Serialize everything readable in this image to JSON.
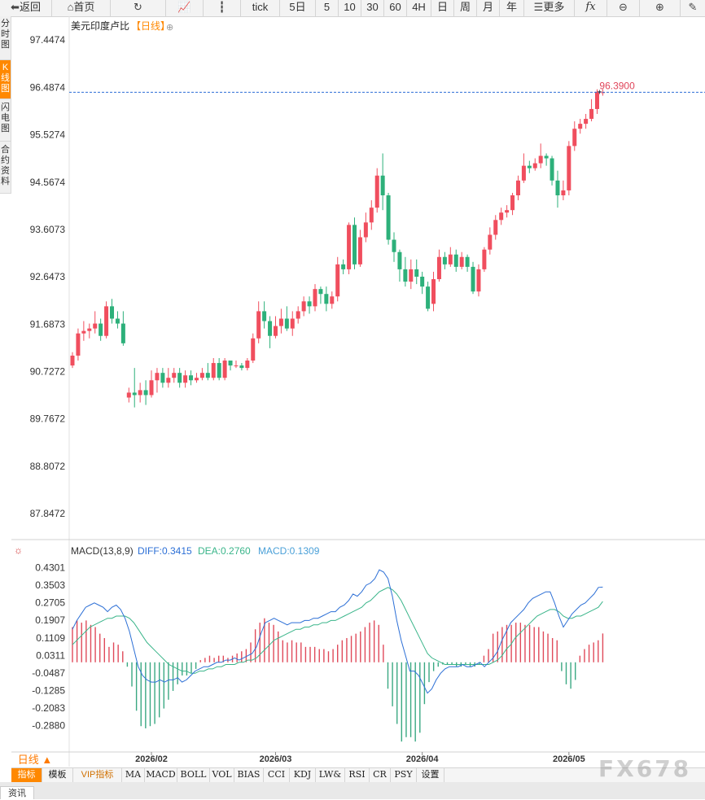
{
  "toolbar": {
    "back": "返回",
    "home": "首页",
    "tick": "tick",
    "d5": "5日",
    "m5": "5",
    "m10": "10",
    "m30": "30",
    "m60": "60",
    "h4": "4H",
    "day": "日",
    "week": "周",
    "month": "月",
    "year": "年",
    "more": "更多",
    "fx": "fx"
  },
  "sidebar": {
    "items": [
      "分时图",
      "K线图",
      "闪电图",
      "合约资料"
    ],
    "active_index": 1
  },
  "main": {
    "title": "美元印度卢比",
    "period_tag": "【日线】",
    "price_label": "96.3900",
    "price_axis": [
      "97.4474",
      "96.4874",
      "95.5274",
      "94.5674",
      "93.6073",
      "92.6473",
      "91.6873",
      "90.7272",
      "89.7672",
      "88.8072",
      "87.8472"
    ],
    "colors": {
      "up": "#f04e5e",
      "down": "#2db07a",
      "price_line": "#2c6fd6",
      "diff": "#2c6fd6",
      "dea": "#3ab58a",
      "macd_pos": "#e04a5a",
      "macd_neg": "#3aa882"
    }
  },
  "macd": {
    "name": "MACD(13,8,9)",
    "diff_label": "DIFF:0.3415",
    "dea_label": "DEA:0.2760",
    "macd_label": "MACD:0.1309",
    "axis": [
      "0.4301",
      "0.3503",
      "0.2705",
      "0.1907",
      "0.1109",
      "0.0311",
      "-0.0487",
      "-0.1285",
      "-0.2083",
      "-0.2880"
    ]
  },
  "dates": [
    "2026/02",
    "2026/03",
    "2026/04",
    "2026/05"
  ],
  "period_box": "日线 ▲",
  "bottom_tabs": [
    "指标",
    "模板",
    "VIP指标",
    "MA",
    "MACD",
    "BOLL",
    "VOL",
    "BIAS",
    "CCI",
    "KDJ",
    "LW&",
    "RSI",
    "CR",
    "PSY",
    "设置"
  ],
  "news_tab": "资讯",
  "watermark": "FX678",
  "chart_data": {
    "type": "candlestick",
    "title": "美元印度卢比【日线】",
    "ylim": [
      87.37,
      97.93
    ],
    "last_price": 96.39,
    "x_ticks": [
      "2026/02",
      "2026/03",
      "2026/04",
      "2026/05"
    ],
    "candles": [
      [
        90.85,
        91.05,
        91.12,
        90.8
      ],
      [
        91.05,
        91.5,
        91.6,
        90.95
      ],
      [
        91.5,
        91.55,
        91.75,
        91.35
      ],
      [
        91.55,
        91.6,
        91.7,
        91.4
      ],
      [
        91.6,
        91.7,
        91.95,
        91.5
      ],
      [
        91.7,
        91.45,
        91.8,
        91.35
      ],
      [
        91.45,
        92.05,
        92.15,
        91.4
      ],
      [
        92.05,
        91.8,
        92.2,
        91.7
      ],
      [
        91.8,
        91.7,
        91.95,
        91.6
      ],
      [
        91.7,
        91.3,
        91.95,
        91.25
      ],
      [
        90.2,
        90.3,
        90.4,
        90.1
      ],
      [
        90.3,
        90.25,
        90.8,
        90.0
      ],
      [
        90.25,
        90.35,
        90.5,
        90.1
      ],
      [
        90.35,
        90.25,
        90.55,
        90.05
      ],
      [
        90.25,
        90.55,
        90.75,
        90.2
      ],
      [
        90.55,
        90.7,
        90.8,
        90.3
      ],
      [
        90.7,
        90.5,
        90.8,
        90.4
      ],
      [
        90.5,
        90.6,
        90.8,
        90.4
      ],
      [
        90.6,
        90.7,
        90.8,
        90.5
      ],
      [
        90.7,
        90.5,
        90.8,
        90.4
      ],
      [
        90.5,
        90.65,
        90.75,
        90.4
      ],
      [
        90.65,
        90.55,
        90.75,
        90.45
      ],
      [
        90.55,
        90.6,
        90.7,
        90.5
      ],
      [
        90.6,
        90.7,
        90.8,
        90.55
      ],
      [
        90.7,
        90.6,
        90.9,
        90.55
      ],
      [
        90.6,
        90.9,
        91.0,
        90.55
      ],
      [
        90.9,
        90.6,
        91.0,
        90.55
      ],
      [
        90.6,
        90.95,
        91.0,
        90.55
      ],
      [
        90.95,
        90.85,
        90.95,
        90.75
      ],
      [
        90.85,
        90.85,
        90.95,
        90.8
      ],
      [
        90.85,
        90.8,
        90.9,
        90.75
      ],
      [
        90.8,
        90.95,
        91.0,
        90.75
      ],
      [
        90.95,
        91.4,
        91.5,
        90.9
      ],
      [
        91.4,
        91.95,
        92.15,
        91.3
      ],
      [
        91.95,
        91.75,
        92.15,
        91.6
      ],
      [
        91.75,
        91.45,
        91.85,
        91.2
      ],
      [
        91.45,
        91.65,
        91.85,
        91.4
      ],
      [
        91.65,
        91.8,
        92.0,
        91.5
      ],
      [
        91.8,
        91.6,
        92.05,
        91.55
      ],
      [
        91.6,
        91.8,
        91.95,
        91.45
      ],
      [
        91.8,
        91.95,
        92.05,
        91.7
      ],
      [
        91.95,
        92.15,
        92.25,
        91.85
      ],
      [
        92.15,
        92.05,
        92.25,
        91.9
      ],
      [
        92.05,
        92.4,
        92.5,
        91.95
      ],
      [
        92.4,
        92.3,
        92.45,
        92.1
      ],
      [
        92.3,
        92.1,
        92.45,
        91.95
      ],
      [
        92.1,
        92.25,
        92.35,
        92.0
      ],
      [
        92.25,
        92.9,
        93.05,
        92.15
      ],
      [
        92.9,
        92.8,
        93.0,
        92.7
      ],
      [
        92.8,
        93.7,
        93.75,
        92.7
      ],
      [
        93.7,
        92.9,
        93.85,
        92.8
      ],
      [
        92.9,
        93.45,
        93.6,
        92.85
      ],
      [
        93.45,
        93.75,
        93.95,
        93.35
      ],
      [
        93.75,
        94.05,
        94.2,
        93.6
      ],
      [
        94.05,
        94.7,
        94.85,
        93.95
      ],
      [
        94.7,
        94.3,
        95.15,
        94.0
      ],
      [
        94.3,
        93.4,
        94.35,
        93.3
      ],
      [
        93.4,
        93.15,
        93.55,
        92.95
      ],
      [
        93.15,
        92.8,
        93.2,
        92.55
      ],
      [
        92.8,
        92.55,
        93.05,
        92.45
      ],
      [
        92.55,
        92.8,
        93.0,
        92.4
      ],
      [
        92.8,
        92.65,
        93.0,
        92.5
      ],
      [
        92.65,
        92.45,
        92.75,
        92.3
      ],
      [
        92.45,
        92.0,
        92.55,
        91.95
      ],
      [
        92.1,
        92.6,
        92.75,
        91.95
      ],
      [
        92.6,
        93.05,
        93.2,
        92.55
      ],
      [
        93.05,
        92.9,
        93.15,
        92.8
      ],
      [
        92.9,
        93.1,
        93.25,
        92.85
      ],
      [
        93.1,
        92.85,
        93.2,
        92.75
      ],
      [
        92.85,
        93.05,
        93.15,
        92.8
      ],
      [
        93.05,
        92.85,
        93.1,
        92.75
      ],
      [
        92.85,
        92.35,
        92.95,
        92.3
      ],
      [
        92.35,
        92.8,
        92.9,
        92.25
      ],
      [
        92.8,
        93.2,
        93.25,
        92.75
      ],
      [
        93.2,
        93.5,
        93.65,
        93.1
      ],
      [
        93.5,
        93.8,
        93.9,
        93.4
      ],
      [
        93.8,
        93.95,
        94.05,
        93.7
      ],
      [
        93.95,
        94.0,
        94.1,
        93.85
      ],
      [
        94.0,
        94.3,
        94.35,
        93.9
      ],
      [
        94.3,
        94.6,
        94.7,
        94.2
      ],
      [
        94.6,
        94.9,
        95.15,
        94.55
      ],
      [
        94.9,
        94.85,
        95.0,
        94.75
      ],
      [
        94.85,
        94.95,
        95.05,
        94.8
      ],
      [
        94.95,
        95.1,
        95.35,
        94.85
      ],
      [
        95.1,
        95.05,
        95.15,
        94.9
      ],
      [
        95.05,
        94.6,
        95.1,
        94.5
      ],
      [
        94.6,
        94.3,
        94.8,
        94.05
      ],
      [
        94.3,
        94.4,
        94.6,
        94.2
      ],
      [
        94.4,
        95.3,
        95.4,
        94.3
      ],
      [
        95.3,
        95.65,
        95.8,
        95.2
      ],
      [
        95.65,
        95.75,
        95.85,
        95.55
      ],
      [
        95.75,
        95.85,
        95.95,
        95.65
      ],
      [
        95.85,
        96.05,
        96.25,
        95.8
      ],
      [
        96.05,
        96.4,
        96.45,
        95.95
      ],
      [
        96.38,
        96.39,
        96.45,
        96.32
      ]
    ],
    "macd": {
      "ylim": [
        -0.4,
        0.465
      ],
      "diff": [
        0.15,
        0.19,
        0.22,
        0.25,
        0.26,
        0.27,
        0.26,
        0.25,
        0.23,
        0.25,
        0.26,
        0.24,
        0.2,
        0.14,
        0.06,
        -0.02,
        -0.06,
        -0.08,
        -0.09,
        -0.09,
        -0.08,
        -0.09,
        -0.08,
        -0.08,
        -0.07,
        -0.09,
        -0.08,
        -0.06,
        -0.04,
        -0.03,
        -0.02,
        -0.02,
        -0.01,
        0.0,
        0.0,
        0.01,
        0.01,
        0.02,
        0.01,
        0.02,
        0.03,
        0.04,
        0.07,
        0.13,
        0.18,
        0.19,
        0.2,
        0.19,
        0.18,
        0.17,
        0.18,
        0.18,
        0.18,
        0.19,
        0.19,
        0.2,
        0.2,
        0.21,
        0.22,
        0.23,
        0.23,
        0.25,
        0.26,
        0.28,
        0.31,
        0.3,
        0.32,
        0.35,
        0.36,
        0.38,
        0.42,
        0.41,
        0.38,
        0.3,
        0.19,
        0.1,
        0.03,
        -0.04,
        -0.04,
        -0.06,
        -0.1,
        -0.14,
        -0.12,
        -0.08,
        -0.05,
        -0.03,
        -0.02,
        -0.02,
        -0.02,
        -0.01,
        -0.02,
        -0.02,
        -0.01,
        0.0,
        -0.02,
        0.0,
        0.02,
        0.05,
        0.1,
        0.14,
        0.18,
        0.2,
        0.22,
        0.24,
        0.27,
        0.29,
        0.3,
        0.31,
        0.32,
        0.32,
        0.27,
        0.21,
        0.16,
        0.19,
        0.22,
        0.24,
        0.26,
        0.27,
        0.29,
        0.31,
        0.34,
        0.3415
      ],
      "dea": [
        0.08,
        0.1,
        0.12,
        0.14,
        0.16,
        0.17,
        0.18,
        0.19,
        0.2,
        0.2,
        0.21,
        0.21,
        0.21,
        0.2,
        0.18,
        0.15,
        0.12,
        0.09,
        0.07,
        0.05,
        0.03,
        0.01,
        -0.01,
        -0.02,
        -0.03,
        -0.04,
        -0.04,
        -0.05,
        -0.05,
        -0.04,
        -0.04,
        -0.03,
        -0.03,
        -0.02,
        -0.02,
        -0.01,
        -0.01,
        -0.01,
        0.0,
        0.0,
        0.01,
        0.01,
        0.02,
        0.04,
        0.06,
        0.08,
        0.1,
        0.11,
        0.12,
        0.13,
        0.14,
        0.15,
        0.15,
        0.16,
        0.16,
        0.17,
        0.17,
        0.18,
        0.18,
        0.19,
        0.19,
        0.2,
        0.21,
        0.22,
        0.23,
        0.24,
        0.25,
        0.27,
        0.28,
        0.3,
        0.32,
        0.33,
        0.34,
        0.33,
        0.31,
        0.28,
        0.24,
        0.2,
        0.16,
        0.12,
        0.08,
        0.04,
        0.02,
        0.01,
        0.0,
        -0.01,
        -0.01,
        -0.01,
        -0.01,
        -0.01,
        -0.01,
        -0.01,
        -0.01,
        -0.01,
        -0.01,
        -0.01,
        0.0,
        0.01,
        0.03,
        0.06,
        0.08,
        0.11,
        0.13,
        0.15,
        0.17,
        0.19,
        0.21,
        0.22,
        0.23,
        0.24,
        0.24,
        0.23,
        0.21,
        0.2,
        0.2,
        0.21,
        0.21,
        0.22,
        0.23,
        0.24,
        0.25,
        0.276
      ],
      "hist": [
        0.16,
        0.19,
        0.18,
        0.19,
        0.17,
        0.16,
        0.13,
        0.11,
        0.07,
        0.09,
        0.08,
        0.05,
        -0.02,
        -0.11,
        -0.22,
        -0.29,
        -0.3,
        -0.29,
        -0.28,
        -0.25,
        -0.21,
        -0.17,
        -0.13,
        -0.1,
        -0.06,
        -0.06,
        -0.05,
        -0.03,
        0.01,
        0.02,
        0.03,
        0.02,
        0.03,
        0.03,
        0.02,
        0.03,
        0.04,
        0.05,
        0.06,
        0.09,
        0.15,
        0.18,
        0.2,
        0.18,
        0.17,
        0.14,
        0.1,
        0.09,
        0.1,
        0.09,
        0.09,
        0.07,
        0.07,
        0.07,
        0.06,
        0.06,
        0.05,
        0.06,
        0.08,
        0.1,
        0.11,
        0.12,
        0.13,
        0.14,
        0.16,
        0.18,
        0.19,
        0.17,
        0.08,
        -0.12,
        -0.2,
        -0.28,
        -0.36,
        -0.34,
        -0.34,
        -0.36,
        -0.32,
        -0.19,
        -0.09,
        -0.04,
        -0.02,
        -0.01,
        -0.01,
        -0.01,
        -0.02,
        -0.02,
        -0.01,
        -0.02,
        -0.02,
        -0.01,
        0.03,
        0.06,
        0.13,
        0.14,
        0.16,
        0.17,
        0.17,
        0.18,
        0.18,
        0.17,
        0.17,
        0.16,
        0.16,
        0.14,
        0.13,
        0.11,
        0.1,
        -0.04,
        -0.1,
        -0.12,
        -0.08,
        0.03,
        0.06,
        0.08,
        0.09,
        0.1,
        0.1309
      ]
    }
  }
}
